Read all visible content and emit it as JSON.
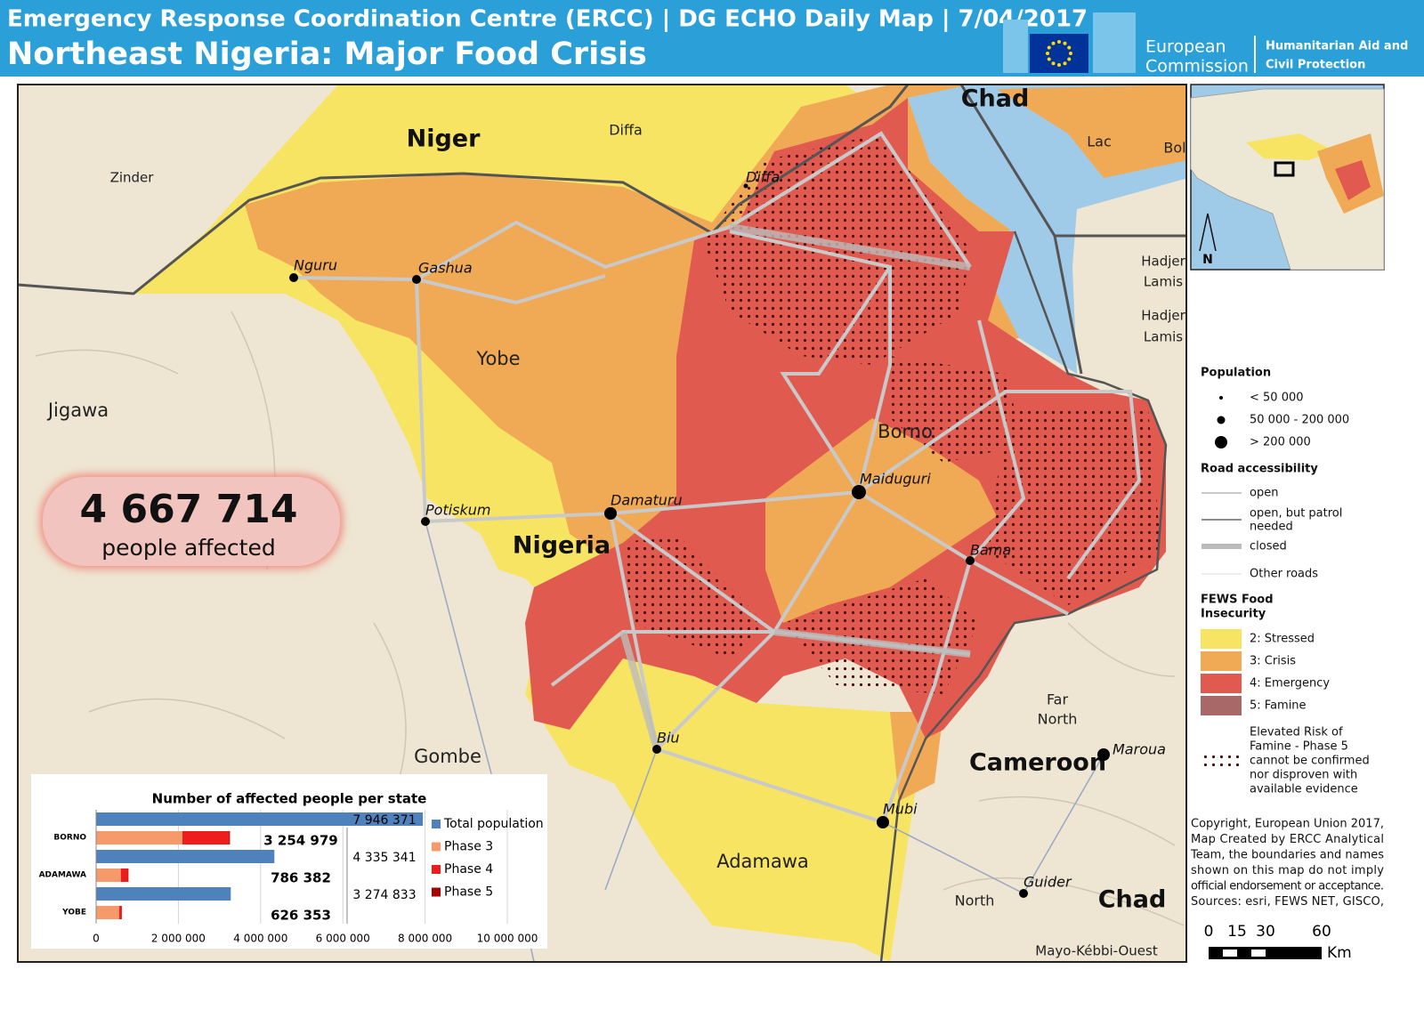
{
  "header": {
    "title": "Emergency Response Coordination Centre (ERCC) | DG ECHO Daily Map | 7/04/2017",
    "subtitle": "Northeast Nigeria: Major Food Crisis",
    "logo_left": [
      "European",
      "Commission"
    ],
    "logo_right": [
      "Humanitarian Aid and",
      "Civil Protection"
    ]
  },
  "map": {
    "countries": [
      "Chad",
      "Niger",
      "Nigeria",
      "Cameroon",
      "Chad"
    ],
    "regions": [
      "Zinder",
      "Diffa",
      "Lac",
      "Bol",
      "Jigawa",
      "Yobe",
      "Borno",
      "Gombe",
      "Adamawa",
      "Far",
      "North",
      "North",
      "Mayo-Kébbi-Ouest",
      "Hadjer",
      "Lamis",
      "Hadjer",
      "Lamis"
    ],
    "cities": [
      "Diffa",
      "Nguru",
      "Gashua",
      "Potiskum",
      "Damaturu",
      "Maiduguri",
      "Bama",
      "Biu",
      "Mubi",
      "Maroua",
      "Guider"
    ],
    "inset_north": "N"
  },
  "badge": {
    "value": "4 667 714",
    "caption": "people affected"
  },
  "legend": {
    "population_title": "Population",
    "population_items": [
      "< 50 000",
      "50 000 - 200 000",
      "> 200 000"
    ],
    "roads_title": "Road accessibility",
    "road_items": [
      [
        "open"
      ],
      [
        "open, but patrol",
        "needed"
      ],
      [
        "closed"
      ],
      [
        "Other roads"
      ]
    ],
    "fews_title": [
      "FEWS Food",
      "Insecurity"
    ],
    "fews_items": [
      {
        "label": "2: Stressed",
        "color": "#f7e463"
      },
      {
        "label": "3: Crisis",
        "color": "#f0a955"
      },
      {
        "label": "4: Emergency",
        "color": "#e15a4f"
      },
      {
        "label": "5: Famine",
        "color": "#a86868"
      }
    ],
    "famine_note": [
      "Elevated Risk of",
      "Famine - Phase 5",
      "cannot be confirmed",
      "nor disproven with",
      "available evidence"
    ]
  },
  "copyright": [
    "Copyright, European Union 2017,",
    "Map Created by ERCC Analytical",
    "Team, the boundaries and names",
    "shown on this map do not imply",
    "official endorsement or acceptance.",
    "Sources: esri, FEWS NET, GISCO,"
  ],
  "scale": {
    "labels": [
      "0",
      "15",
      "30",
      "60"
    ],
    "unit": "Km"
  },
  "chart_data": {
    "type": "bar",
    "orientation": "horizontal",
    "title": "Number of affected people per state",
    "categories": [
      "BORNO",
      "ADAMAWA",
      "YOBE"
    ],
    "series": [
      {
        "name": "Total population",
        "color": "#4f81bd",
        "values": [
          7946371,
          4335341,
          3274833
        ],
        "value_labels": [
          "7 946 371",
          "4 335 341",
          "3 274 833"
        ]
      },
      {
        "name": "Phase 3",
        "color": "#f79a6b",
        "values": [
          2100000,
          600000,
          560000
        ]
      },
      {
        "name": "Phase 4",
        "color": "#ee1c1c",
        "values": [
          1130000,
          170000,
          60000
        ]
      },
      {
        "name": "Phase 5",
        "color": "#a80000",
        "values": [
          24979,
          16382,
          6353
        ]
      }
    ],
    "affected_labels": [
      "3 254 979",
      "786 382",
      "626 353"
    ],
    "xlim": [
      0,
      10000000
    ],
    "xticks": [
      0,
      {
        "value": 2000000,
        "label": "2 000 000"
      },
      {
        "value": 4000000,
        "label": "4 000 000"
      },
      {
        "value": 6000000,
        "label": "6 000 000"
      },
      {
        "value": 8000000,
        "label": "8 000 000"
      },
      {
        "value": 10000000,
        "label": "10 000 000"
      }
    ],
    "grid": true
  }
}
